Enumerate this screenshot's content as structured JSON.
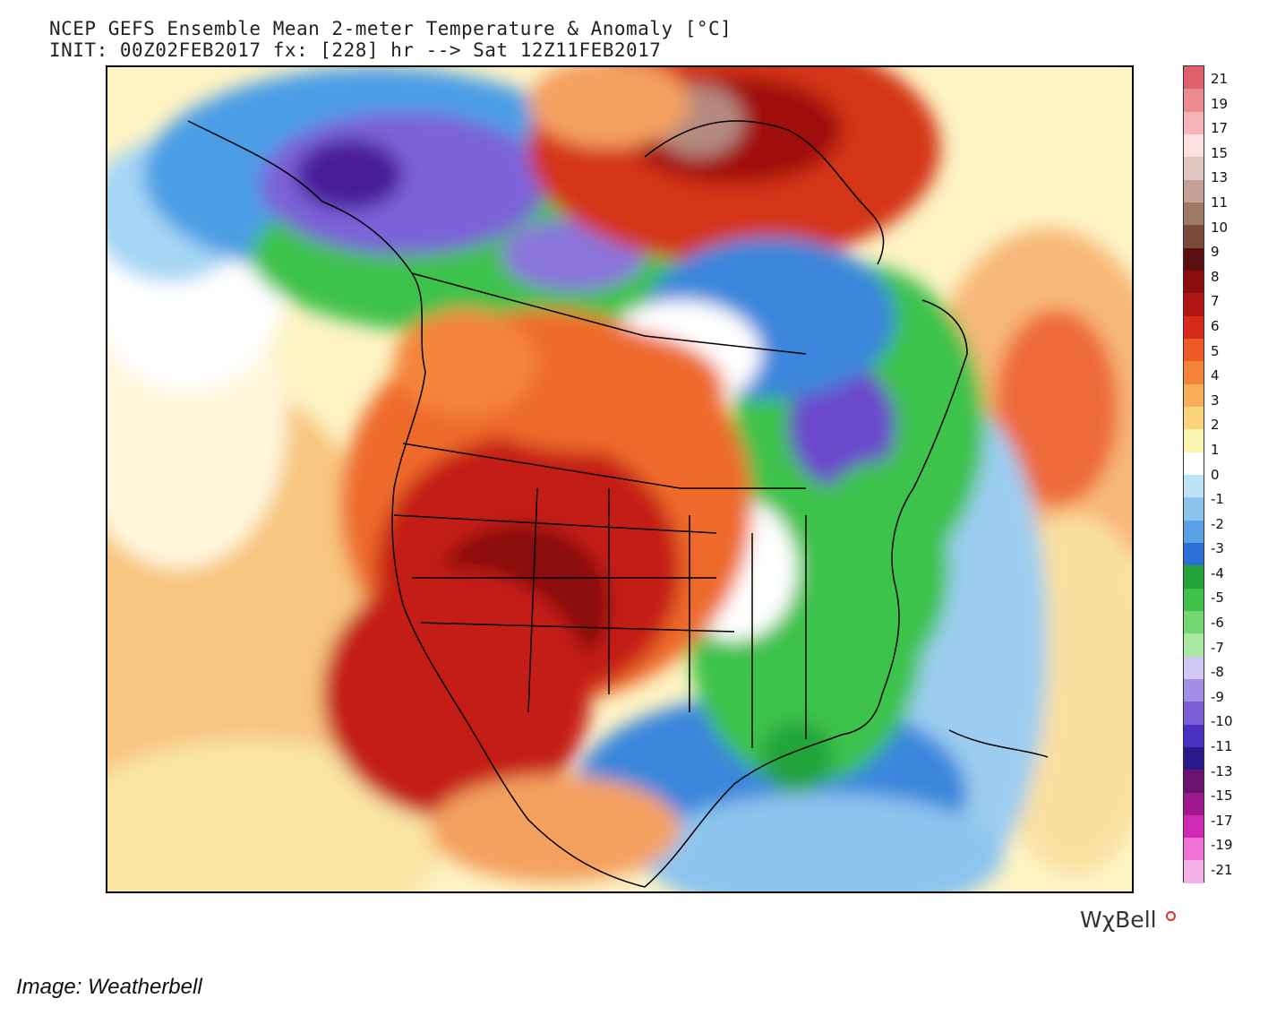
{
  "header": {
    "title_line1": "NCEP GEFS Ensemble Mean 2-meter Temperature & Anomaly [°C]",
    "title_line2": "INIT: 00Z02FEB2017 fx: [228] hr --> Sat 12Z11FEB2017"
  },
  "colorbar": {
    "labels": [
      "21",
      "19",
      "17",
      "15",
      "13",
      "11",
      "10",
      "9",
      "8",
      "7",
      "6",
      "5",
      "4",
      "3",
      "2",
      "1",
      "0",
      "-1",
      "-2",
      "-3",
      "-4",
      "-5",
      "-6",
      "-7",
      "-8",
      "-9",
      "-10",
      "-11",
      "-13",
      "-15",
      "-17",
      "-19",
      "-21"
    ],
    "colors": [
      "#e0606a",
      "#ec8a92",
      "#f4b4b8",
      "#fae0e0",
      "#ddc7c0",
      "#c4a096",
      "#a07868",
      "#7a4a3a",
      "#5a1010",
      "#8a0c0c",
      "#b01414",
      "#d82a1a",
      "#ee5a26",
      "#f4843a",
      "#f7ad5a",
      "#f9d47a",
      "#fbf4b0",
      "#ffffff",
      "#bfe3f6",
      "#8cc4ee",
      "#5aa0e4",
      "#2c6fd6",
      "#22a43a",
      "#3ec24c",
      "#72d874",
      "#a8eaa4",
      "#cfc8f2",
      "#a48fe6",
      "#7a5ed6",
      "#4a30c0",
      "#2a1888",
      "#6a1470",
      "#a0188e",
      "#d02ab4",
      "#ee72d4",
      "#f6b0e8"
    ]
  },
  "map": {
    "colors": {
      "ocean_warm": "#f7dea0",
      "ocean_neutral": "#fdf3c4",
      "warm_strong": "#c41e16",
      "warm_very_strong": "#8a0c0c",
      "warm_moderate": "#ee6a2a",
      "cold_blue": "#3a86dc",
      "cold_green": "#3ec24c",
      "cold_purple": "#6a48cc"
    }
  },
  "brand": {
    "logo_text": "WχBell"
  },
  "caption": "Image: Weatherbell"
}
